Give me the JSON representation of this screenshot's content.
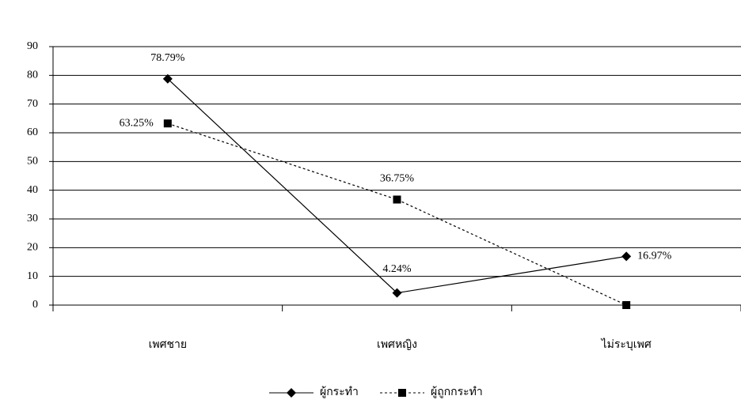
{
  "chart_data": {
    "type": "line",
    "categories": [
      "เพศชาย",
      "เพศหญิง",
      "ไม่ระบุเพศ"
    ],
    "series": [
      {
        "name": "ผู้กระทำ",
        "color": "#000000",
        "line_style": "solid",
        "marker": "diamond",
        "values": [
          78.79,
          4.24,
          16.97
        ],
        "value_labels": [
          "78.79%",
          "4.24%",
          "16.97%"
        ]
      },
      {
        "name": "ผู้ถูกกระทำ",
        "color": "#000000",
        "line_style": "dotted",
        "marker": "square",
        "values": [
          63.25,
          36.75,
          0
        ],
        "value_labels": [
          "63.25%",
          "36.75%",
          null
        ]
      }
    ],
    "ylim": [
      0,
      90
    ],
    "yticks": [
      0,
      10,
      20,
      30,
      40,
      50,
      60,
      70,
      80,
      90
    ],
    "grid": true,
    "legend": "bottom"
  }
}
